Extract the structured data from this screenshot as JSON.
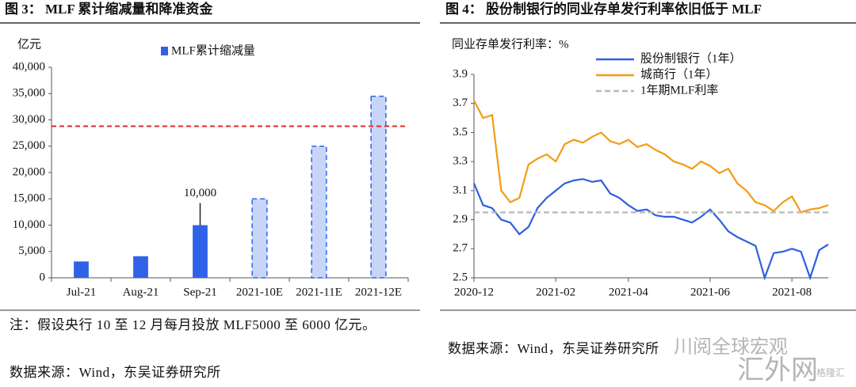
{
  "chart_data": [
    {
      "type": "bar",
      "title": "图 3： MLF 累计缩减量和降准资金",
      "y_label": "亿元",
      "categories": [
        "Jul-21",
        "Aug-21",
        "Sep-21",
        "2021-10E",
        "2021-11E",
        "2021-12E"
      ],
      "series": [
        {
          "name": "MLF累计缩减量",
          "color": "#3062e8",
          "values": [
            3100,
            4100,
            10000,
            15000,
            25000,
            34500
          ],
          "value_labels": [
            null,
            null,
            "10,000",
            null,
            null,
            null
          ]
        }
      ],
      "bar_styles": [
        "solid",
        "solid",
        "solid",
        "dashed",
        "dashed",
        "dashed"
      ],
      "dashed_fill": "#c7d6f8",
      "reference_line": {
        "value": 28800,
        "color": "#e02828"
      },
      "ylim": [
        0,
        40000
      ],
      "yticks": [
        0,
        {
          "value": 5000,
          "label": "5,000"
        },
        {
          "value": 10000,
          "label": "10,000"
        },
        {
          "value": 15000,
          "label": "15,000"
        },
        {
          "value": 20000,
          "label": "20,000"
        },
        {
          "value": 25000,
          "label": "25,000"
        },
        {
          "value": 30000,
          "label": "30,000"
        },
        {
          "value": 35000,
          "label": "35,000"
        },
        {
          "value": 40000,
          "label": "40,000"
        }
      ],
      "grid": false
    },
    {
      "type": "line",
      "title": "图 4： 股份制银行的同业存单发行利率依旧低于 MLF",
      "y_label": "同业存单发行利率：%",
      "x": [
        "2020-12",
        null,
        null,
        null,
        null,
        null,
        null,
        null,
        null,
        "2021-02",
        null,
        null,
        null,
        null,
        null,
        null,
        null,
        "2021-04",
        null,
        null,
        null,
        null,
        null,
        null,
        null,
        null,
        "2021-06",
        null,
        null,
        null,
        null,
        null,
        null,
        null,
        null,
        "2021-08",
        null,
        null,
        null,
        null
      ],
      "series": [
        {
          "name": "股份制银行（1年）",
          "color": "#2f5fe0",
          "dashed": false,
          "values": [
            3.15,
            3.0,
            2.98,
            2.9,
            2.88,
            2.8,
            2.85,
            2.98,
            3.05,
            3.1,
            3.15,
            3.17,
            3.18,
            3.16,
            3.17,
            3.08,
            3.05,
            3.0,
            2.96,
            2.97,
            2.93,
            2.92,
            2.92,
            2.9,
            2.88,
            2.92,
            2.97,
            2.9,
            2.82,
            2.78,
            2.75,
            2.72,
            2.5,
            2.67,
            2.68,
            2.7,
            2.68,
            2.5,
            2.69,
            2.73
          ]
        },
        {
          "name": "城商行（1年）",
          "color": "#f39c12",
          "dashed": false,
          "values": [
            3.72,
            3.6,
            3.62,
            3.1,
            3.02,
            3.05,
            3.28,
            3.32,
            3.35,
            3.3,
            3.42,
            3.45,
            3.43,
            3.47,
            3.5,
            3.44,
            3.42,
            3.45,
            3.4,
            3.42,
            3.38,
            3.35,
            3.3,
            3.28,
            3.25,
            3.3,
            3.27,
            3.22,
            3.25,
            3.15,
            3.1,
            3.02,
            3.0,
            2.96,
            3.02,
            3.06,
            2.95,
            2.97,
            2.98,
            3.0
          ]
        },
        {
          "name": "1年期MLF利率",
          "color": "#b8b8b8",
          "dashed": true,
          "values": [
            2.95,
            2.95,
            2.95,
            2.95,
            2.95,
            2.95,
            2.95,
            2.95,
            2.95,
            2.95,
            2.95,
            2.95,
            2.95,
            2.95,
            2.95,
            2.95,
            2.95,
            2.95,
            2.95,
            2.95,
            2.95,
            2.95,
            2.95,
            2.95,
            2.95,
            2.95,
            2.95,
            2.95,
            2.95,
            2.95,
            2.95,
            2.95,
            2.95,
            2.95,
            2.95,
            2.95,
            2.95,
            2.95,
            2.95,
            2.95
          ]
        }
      ],
      "ylim": [
        2.5,
        3.9
      ],
      "yticks": [
        2.5,
        2.7,
        2.9,
        3.1,
        3.3,
        3.5,
        3.7,
        3.9
      ],
      "grid": false
    }
  ],
  "notes": {
    "note": "注：假设央行 10 至 12 月每月投放 MLF5000 至 6000 亿元。",
    "source_left": "数据来源：Wind，东吴证券研究所",
    "source_right": "数据来源：Wind，东吴证券研究所"
  },
  "watermarks": [
    "川阅全球宏观",
    "汇外网",
    "格隆汇"
  ]
}
